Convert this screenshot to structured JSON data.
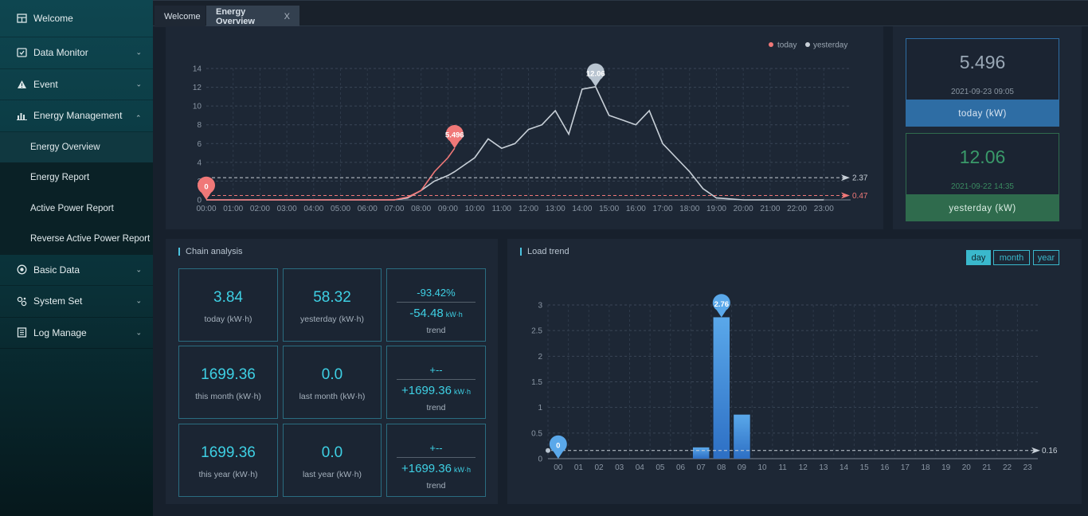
{
  "sidebar": {
    "items": [
      {
        "label": "Welcome",
        "icon": "welcome-icon"
      },
      {
        "label": "Data Monitor",
        "icon": "monitor-icon"
      },
      {
        "label": "Event",
        "icon": "warning-icon"
      },
      {
        "label": "Energy Management",
        "icon": "bar-chart-icon"
      },
      {
        "label": "Basic Data",
        "icon": "database-icon"
      },
      {
        "label": "System Set",
        "icon": "settings-icon"
      },
      {
        "label": "Log Manage",
        "icon": "log-icon"
      }
    ],
    "sub_items": [
      "Energy Overview",
      "Energy Report",
      "Active Power Report",
      "Reverse Active Power Report"
    ]
  },
  "tabs": [
    {
      "label": "Welcome"
    },
    {
      "label": "Energy Overview",
      "close": "X"
    }
  ],
  "power_chart": {
    "legend": {
      "today": "today",
      "yesterday": "yesterday"
    },
    "hours": [
      "00:00",
      "01:00",
      "02:00",
      "03:00",
      "04:00",
      "05:00",
      "06:00",
      "07:00",
      "08:00",
      "09:00",
      "10:00",
      "11:00",
      "12:00",
      "13:00",
      "14:00",
      "15:00",
      "16:00",
      "17:00",
      "18:00",
      "19:00",
      "20:00",
      "21:00",
      "22:00",
      "23:00"
    ],
    "y_ticks": [
      "0",
      "2",
      "4",
      "6",
      "8",
      "10",
      "12",
      "14"
    ],
    "markers": {
      "today_max": "5.496",
      "today_min": "0",
      "yesterday_max": "12.06"
    },
    "avg_labels": {
      "yesterday": "2.37",
      "today": "0.47"
    }
  },
  "chart_data": [
    {
      "type": "line",
      "xlabel": "",
      "ylabel": "",
      "ylim": [
        0,
        14
      ],
      "x": [
        "00:00",
        "01:00",
        "02:00",
        "03:00",
        "04:00",
        "05:00",
        "06:00",
        "07:00",
        "07:30",
        "08:00",
        "08:30",
        "09:00",
        "09:15",
        "10:00",
        "10:30",
        "11:00",
        "11:30",
        "12:00",
        "12:30",
        "13:00",
        "13:30",
        "14:00",
        "14:30",
        "15:00",
        "15:30",
        "16:00",
        "16:30",
        "17:00",
        "17:30",
        "18:00",
        "18:30",
        "19:00",
        "20:00",
        "21:00",
        "22:00",
        "23:00"
      ],
      "series": [
        {
          "name": "yesterday",
          "color": "#c8d0d8",
          "values": [
            0,
            0,
            0,
            0,
            0,
            0,
            0,
            0,
            0.2,
            1.0,
            2.0,
            2.6,
            3.0,
            4.5,
            6.5,
            5.5,
            6.0,
            7.5,
            8.0,
            9.5,
            7.0,
            11.8,
            12.06,
            9.0,
            8.5,
            8.0,
            9.5,
            6.0,
            4.5,
            3.0,
            1.2,
            0.2,
            0,
            0,
            0,
            0
          ]
        },
        {
          "name": "today",
          "color": "#f07878",
          "values": [
            0,
            0,
            0,
            0,
            0,
            0,
            0,
            0,
            0.3,
            1.0,
            3.0,
            4.5,
            5.496,
            null,
            null,
            null,
            null,
            null,
            null,
            null,
            null,
            null,
            null,
            null,
            null,
            null,
            null,
            null,
            null,
            null,
            null,
            null,
            null,
            null,
            null,
            null
          ]
        }
      ],
      "average_lines": [
        {
          "name": "yesterday",
          "value": 2.37
        },
        {
          "name": "today",
          "value": 0.47
        }
      ],
      "legend_position": "top-right",
      "grid": true
    },
    {
      "type": "bar",
      "categories": [
        "00",
        "01",
        "02",
        "03",
        "04",
        "05",
        "06",
        "07",
        "08",
        "09",
        "10",
        "11",
        "12",
        "13",
        "14",
        "15",
        "16",
        "17",
        "18",
        "19",
        "20",
        "21",
        "22",
        "23"
      ],
      "values": [
        0,
        0,
        0,
        0,
        0,
        0,
        0,
        0.22,
        2.76,
        0.86,
        0,
        0,
        0,
        0,
        0,
        0,
        0,
        0,
        0,
        0,
        0,
        0,
        0,
        0
      ],
      "ylim": [
        0,
        3
      ],
      "average_line": 0.16,
      "xlabel": "",
      "ylabel": "",
      "grid": true
    }
  ],
  "power_cards": {
    "today": {
      "value": "5.496",
      "time": "2021-09-23 09:05",
      "label": "today (kW)"
    },
    "yesterday": {
      "value": "12.06",
      "time": "2021-09-22 14:35",
      "label": "yesterday (kW)"
    }
  },
  "chain": {
    "title": "Chain analysis",
    "rows": [
      {
        "current": {
          "value": "3.84",
          "label": "today (kW·h)"
        },
        "previous": {
          "value": "58.32",
          "label": "yesterday (kW·h)"
        },
        "trend": {
          "pct": "-93.42%",
          "kwh": "-54.48",
          "unit": "kW·h",
          "label": "trend"
        }
      },
      {
        "current": {
          "value": "1699.36",
          "label": "this month (kW·h)"
        },
        "previous": {
          "value": "0.0",
          "label": "last month (kW·h)"
        },
        "trend": {
          "pct": "+--",
          "kwh": "+1699.36",
          "unit": "kW·h",
          "label": "trend"
        }
      },
      {
        "current": {
          "value": "1699.36",
          "label": "this year (kW·h)"
        },
        "previous": {
          "value": "0.0",
          "label": "last year (kW·h)"
        },
        "trend": {
          "pct": "+--",
          "kwh": "+1699.36",
          "unit": "kW·h",
          "label": "trend"
        }
      }
    ]
  },
  "load": {
    "title": "Load trend",
    "buttons": [
      "day",
      "month",
      "year"
    ],
    "active": "day",
    "y_ticks": [
      "0",
      "0.5",
      "1",
      "1.5",
      "2",
      "2.5",
      "3"
    ],
    "markers": {
      "max": "2.76",
      "min": "0"
    },
    "avg_label": "0.16"
  },
  "colors": {
    "today": "#f07878",
    "yesterday": "#c8d0d8",
    "accent": "#3ab8cc",
    "today_card": "#2e6da4",
    "yesterday_card": "#2f6b4d"
  }
}
